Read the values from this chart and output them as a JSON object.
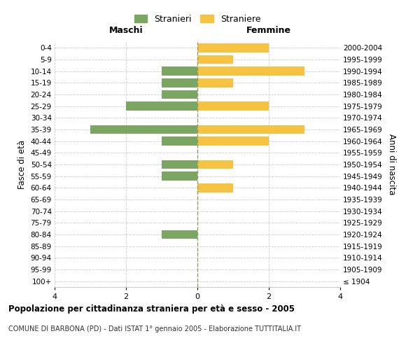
{
  "age_groups": [
    "100+",
    "95-99",
    "90-94",
    "85-89",
    "80-84",
    "75-79",
    "70-74",
    "65-69",
    "60-64",
    "55-59",
    "50-54",
    "45-49",
    "40-44",
    "35-39",
    "30-34",
    "25-29",
    "20-24",
    "15-19",
    "10-14",
    "5-9",
    "0-4"
  ],
  "birth_years": [
    "≤ 1904",
    "1905-1909",
    "1910-1914",
    "1915-1919",
    "1920-1924",
    "1925-1929",
    "1930-1934",
    "1935-1939",
    "1940-1944",
    "1945-1949",
    "1950-1954",
    "1955-1959",
    "1960-1964",
    "1965-1969",
    "1970-1974",
    "1975-1979",
    "1980-1984",
    "1985-1989",
    "1990-1994",
    "1995-1999",
    "2000-2004"
  ],
  "maschi": [
    0,
    0,
    0,
    0,
    1,
    0,
    0,
    0,
    0,
    1,
    1,
    0,
    1,
    3,
    0,
    2,
    1,
    1,
    1,
    0,
    0
  ],
  "femmine": [
    0,
    0,
    0,
    0,
    0,
    0,
    0,
    0,
    1,
    0,
    1,
    0,
    2,
    3,
    0,
    2,
    0,
    1,
    3,
    1,
    2
  ],
  "maschi_color": "#7aa661",
  "femmine_color": "#f5c242",
  "title": "Popolazione per cittadinanza straniera per età e sesso - 2005",
  "subtitle": "COMUNE DI BARBONA (PD) - Dati ISTAT 1° gennaio 2005 - Elaborazione TUTTITALIA.IT",
  "ylabel_left": "Fasce di età",
  "ylabel_right": "Anni di nascita",
  "xlabel_left": "Maschi",
  "xlabel_right": "Femmine",
  "legend_stranieri": "Stranieri",
  "legend_straniere": "Straniere",
  "xlim": 4,
  "background_color": "#ffffff",
  "grid_color": "#cccccc"
}
